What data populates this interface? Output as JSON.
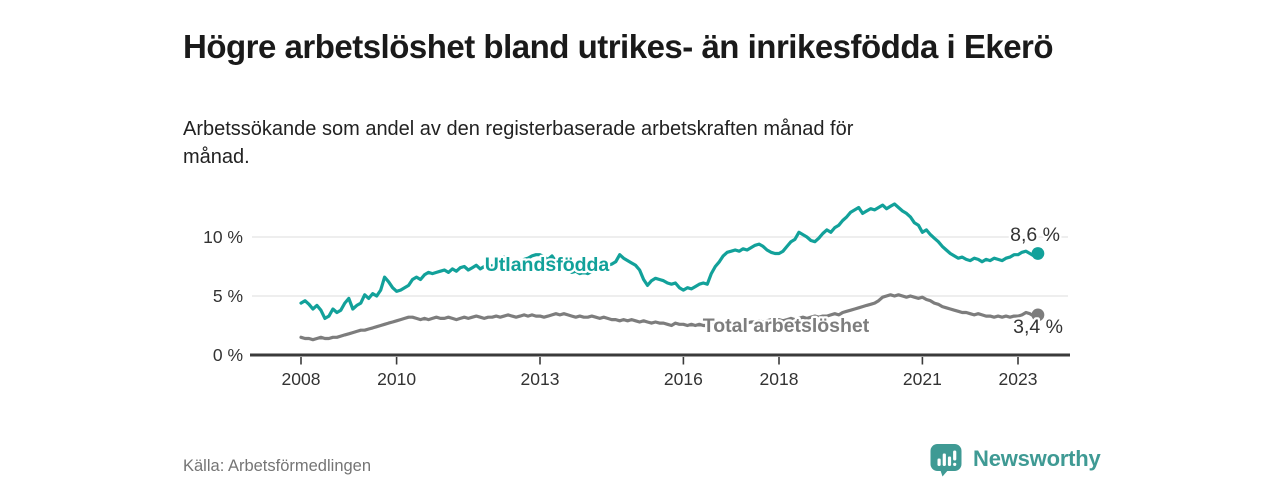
{
  "header": {
    "title": "Högre arbetslöshet bland utrikes- än inrikesfödda i Ekerö",
    "subtitle": "Arbetssökande som andel av den registerbaserade arbetskraften månad för månad."
  },
  "footer": {
    "source": "Källa: Arbetsförmedlingen",
    "brand": "Newsworthy"
  },
  "colors": {
    "accent_teal": "#12a19a",
    "line_gray": "#7d7d7d",
    "axis": "#3a3a3a",
    "gridline": "#e3e3e3",
    "tick_text": "#333333",
    "value_text": "#333333",
    "muted_text": "#757575",
    "logo_teal": "#3f9a94"
  },
  "chart_data": {
    "type": "line",
    "unit": "%",
    "x_start": "2008-01",
    "x_end": "2023-06",
    "points_per_year": 12,
    "x_ticks": [
      2008,
      2010,
      2013,
      2016,
      2018,
      2021,
      2023
    ],
    "y_ticks": [
      {
        "value": 0,
        "label": "0 %"
      },
      {
        "value": 5,
        "label": "5 %"
      },
      {
        "value": 10,
        "label": "10 %"
      }
    ],
    "ylim": [
      0,
      13.5
    ],
    "grid": "horizontal",
    "legend": "inline-labels",
    "series": [
      {
        "name": "Utlandsfödda",
        "color": "#12a19a",
        "end_label": "8,6 %",
        "end_value": 8.6,
        "values": [
          4.4,
          4.6,
          4.3,
          3.9,
          4.2,
          3.8,
          3.1,
          3.3,
          3.9,
          3.6,
          3.8,
          4.4,
          4.8,
          3.9,
          4.2,
          4.4,
          5.1,
          4.8,
          5.2,
          5.0,
          5.5,
          6.6,
          6.2,
          5.7,
          5.4,
          5.5,
          5.7,
          5.9,
          6.4,
          6.6,
          6.4,
          6.8,
          7.0,
          6.9,
          7.0,
          7.1,
          7.2,
          7.0,
          7.3,
          7.1,
          7.4,
          7.5,
          7.2,
          7.4,
          7.6,
          7.3,
          7.5,
          7.7,
          7.5,
          7.8,
          8.0,
          8.3,
          8.1,
          7.9,
          7.7,
          7.9,
          8.1,
          8.2,
          8.4,
          8.5,
          8.5,
          8.3,
          8.1,
          8.4,
          7.9,
          7.6,
          7.4,
          7.2,
          7.0,
          7.1,
          6.9,
          7.0,
          6.9,
          7.1,
          7.3,
          7.5,
          7.4,
          7.6,
          7.7,
          7.9,
          8.5,
          8.2,
          8.0,
          7.8,
          7.6,
          7.2,
          6.4,
          5.9,
          6.3,
          6.5,
          6.4,
          6.3,
          6.1,
          6.0,
          6.1,
          5.7,
          5.5,
          5.7,
          5.6,
          5.8,
          6.0,
          6.1,
          6.0,
          6.9,
          7.5,
          7.9,
          8.4,
          8.7,
          8.8,
          8.9,
          8.8,
          9.0,
          8.9,
          9.1,
          9.3,
          9.4,
          9.2,
          8.9,
          8.7,
          8.6,
          8.6,
          8.8,
          9.2,
          9.6,
          9.8,
          10.4,
          10.2,
          10.0,
          9.7,
          9.6,
          9.9,
          10.3,
          10.6,
          10.4,
          10.8,
          11.0,
          11.4,
          11.7,
          12.1,
          12.3,
          12.5,
          12.0,
          12.2,
          12.4,
          12.3,
          12.5,
          12.7,
          12.4,
          12.6,
          12.8,
          12.5,
          12.2,
          12.0,
          11.7,
          11.2,
          11.0,
          10.4,
          10.6,
          10.2,
          9.9,
          9.6,
          9.2,
          8.9,
          8.6,
          8.4,
          8.2,
          8.3,
          8.1,
          8.0,
          8.2,
          8.1,
          7.9,
          8.1,
          8.0,
          8.2,
          8.1,
          8.0,
          8.2,
          8.3,
          8.5,
          8.5,
          8.7,
          8.8,
          8.6,
          8.4,
          8.6
        ]
      },
      {
        "name": "Total arbetslöshet",
        "color": "#7d7d7d",
        "end_label": "3,4 %",
        "end_value": 3.4,
        "values": [
          1.5,
          1.4,
          1.4,
          1.3,
          1.4,
          1.5,
          1.4,
          1.4,
          1.5,
          1.5,
          1.6,
          1.7,
          1.8,
          1.9,
          2.0,
          2.1,
          2.1,
          2.2,
          2.3,
          2.4,
          2.5,
          2.6,
          2.7,
          2.8,
          2.9,
          3.0,
          3.1,
          3.2,
          3.2,
          3.1,
          3.0,
          3.1,
          3.0,
          3.1,
          3.2,
          3.1,
          3.1,
          3.2,
          3.1,
          3.0,
          3.1,
          3.2,
          3.1,
          3.2,
          3.3,
          3.2,
          3.1,
          3.2,
          3.2,
          3.3,
          3.2,
          3.3,
          3.4,
          3.3,
          3.2,
          3.3,
          3.4,
          3.3,
          3.4,
          3.3,
          3.3,
          3.2,
          3.3,
          3.4,
          3.5,
          3.4,
          3.5,
          3.4,
          3.3,
          3.2,
          3.3,
          3.2,
          3.2,
          3.3,
          3.2,
          3.1,
          3.2,
          3.1,
          3.0,
          3.0,
          2.9,
          3.0,
          2.9,
          3.0,
          2.9,
          2.8,
          2.9,
          2.8,
          2.7,
          2.8,
          2.7,
          2.7,
          2.6,
          2.5,
          2.7,
          2.6,
          2.6,
          2.5,
          2.6,
          2.5,
          2.6,
          2.5,
          2.5,
          2.6,
          2.5,
          2.6,
          2.6,
          2.7,
          2.7,
          2.6,
          2.7,
          2.8,
          2.7,
          2.8,
          2.8,
          2.9,
          2.8,
          2.9,
          3.0,
          2.9,
          3.0,
          2.9,
          3.0,
          3.1,
          3.0,
          3.1,
          3.2,
          3.1,
          3.2,
          3.3,
          3.2,
          3.3,
          3.3,
          3.4,
          3.5,
          3.4,
          3.6,
          3.7,
          3.8,
          3.9,
          4.0,
          4.1,
          4.2,
          4.3,
          4.4,
          4.6,
          4.9,
          5.0,
          5.1,
          5.0,
          5.1,
          5.0,
          4.9,
          5.0,
          4.9,
          4.8,
          4.9,
          4.7,
          4.6,
          4.4,
          4.3,
          4.1,
          4.0,
          3.9,
          3.8,
          3.7,
          3.6,
          3.6,
          3.5,
          3.4,
          3.5,
          3.4,
          3.3,
          3.3,
          3.2,
          3.3,
          3.2,
          3.3,
          3.2,
          3.3,
          3.3,
          3.4,
          3.6,
          3.5,
          3.3,
          3.4
        ]
      }
    ]
  }
}
